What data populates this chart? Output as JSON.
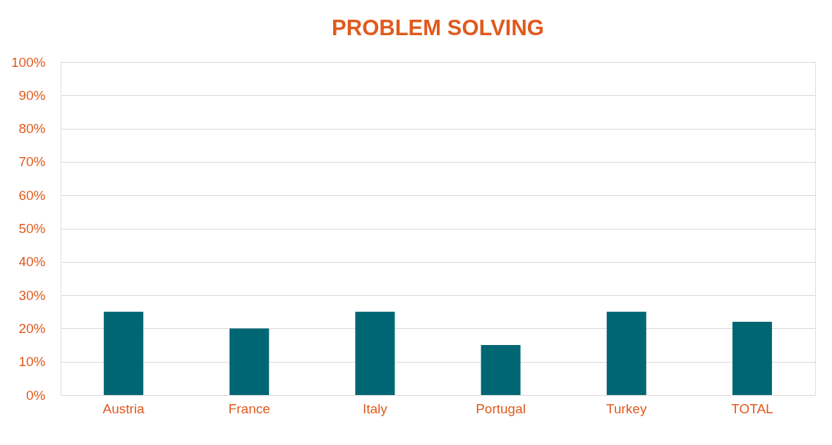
{
  "chart_data": {
    "type": "bar",
    "title": "PROBLEM SOLVING",
    "categories": [
      "Austria",
      "France",
      "Italy",
      "Portugal",
      "Turkey",
      "TOTAL"
    ],
    "series": [
      {
        "color": "#006673",
        "values": [
          25,
          20,
          25,
          15,
          25,
          22
        ]
      }
    ],
    "ylim": [
      0,
      100
    ],
    "yticks": [
      {
        "value": 0,
        "label": "0%"
      },
      {
        "value": 10,
        "label": "10%"
      },
      {
        "value": 20,
        "label": "20%"
      },
      {
        "value": 30,
        "label": "30%"
      },
      {
        "value": 40,
        "label": "40%"
      },
      {
        "value": 50,
        "label": "50%"
      },
      {
        "value": 60,
        "label": "60%"
      },
      {
        "value": 70,
        "label": "70%"
      },
      {
        "value": 80,
        "label": "80%"
      },
      {
        "value": 90,
        "label": "90%"
      },
      {
        "value": 100,
        "label": "100%"
      }
    ],
    "grid": "y",
    "legend": false
  }
}
